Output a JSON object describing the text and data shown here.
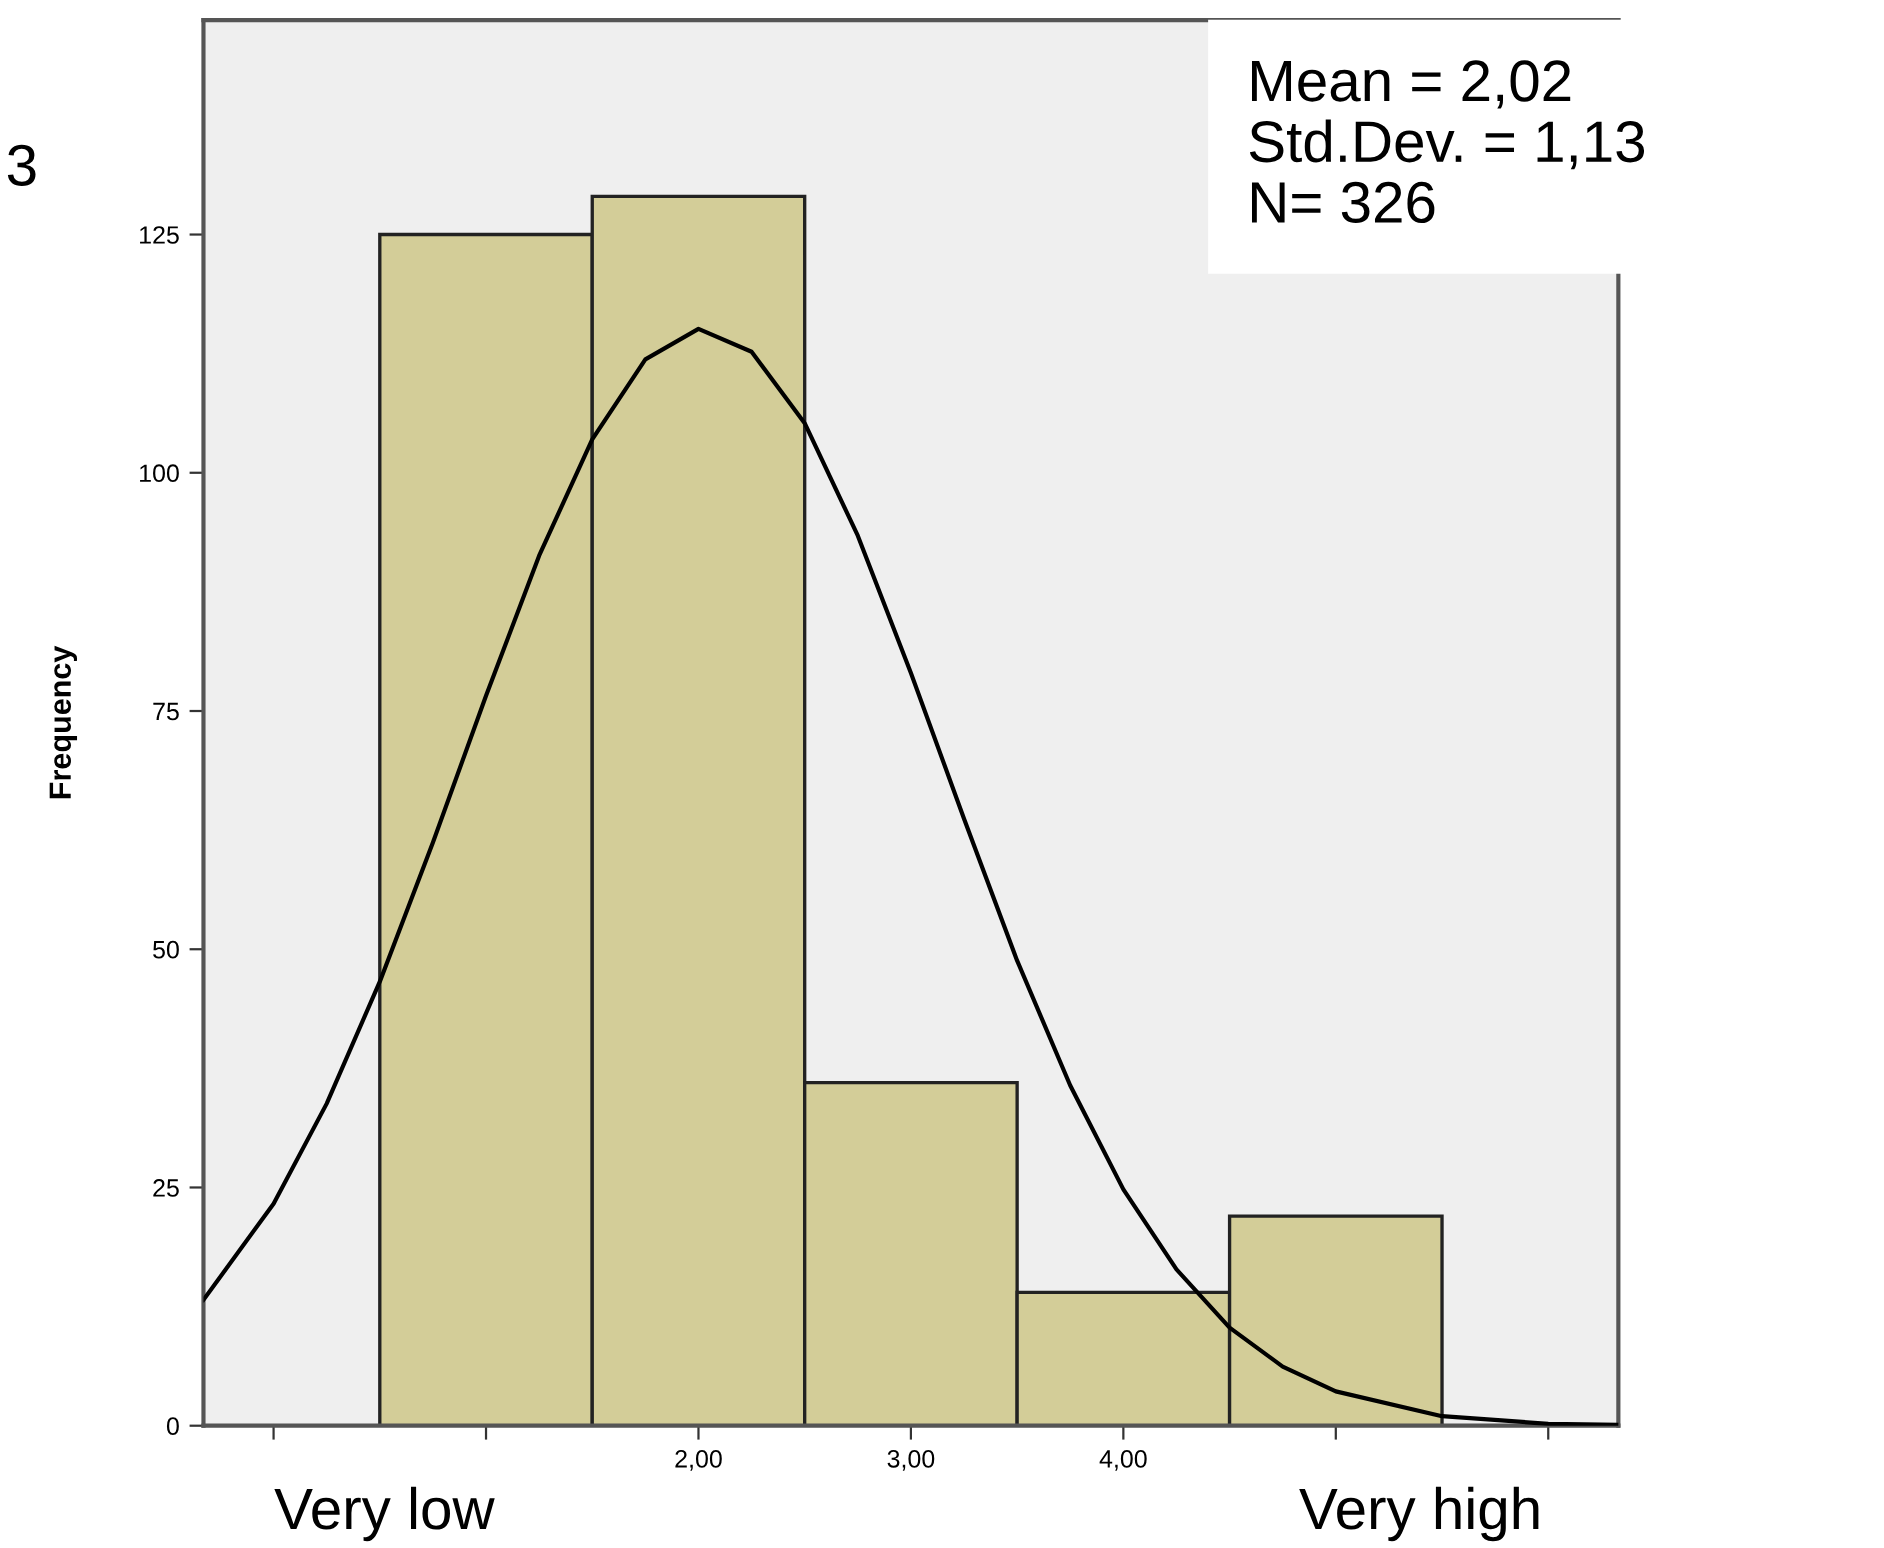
{
  "chart_data": {
    "type": "histogram",
    "ylabel": "Frequency",
    "bins": [
      0.5,
      1.5,
      2.5,
      3.5,
      4.5,
      5.5
    ],
    "values": [
      125,
      129,
      36,
      14,
      22
    ],
    "color": "#d3cd98",
    "series": [
      {
        "type": "line",
        "color": "#000000",
        "x": [
          -0.33,
          0,
          0.25,
          0.5,
          0.75,
          1,
          1.25,
          1.5,
          1.75,
          2,
          2.25,
          2.5,
          2.75,
          3,
          3.25,
          3.5,
          3.75,
          4,
          4.25,
          4.5,
          4.75,
          5,
          5.5,
          6,
          6.33
        ],
        "values": [
          13.2,
          23.3,
          33.8,
          46.6,
          61.2,
          76.6,
          91.3,
          103.5,
          111.9,
          115.1,
          112.7,
          105.2,
          93.4,
          79.0,
          63.7,
          48.8,
          35.7,
          24.8,
          16.4,
          10.3,
          6.2,
          3.6,
          1.0,
          0.2,
          0.1
        ]
      }
    ],
    "xlim": [
      -0.33,
      6.33
    ],
    "xticks": [
      {
        "value": 0,
        "label": null
      },
      {
        "value": 1,
        "label": null
      },
      {
        "value": 2,
        "label": "2,00"
      },
      {
        "value": 3,
        "label": "3,00"
      },
      {
        "value": 4,
        "label": "4,00"
      },
      {
        "value": 5,
        "label": null
      },
      {
        "value": 6,
        "label": null
      }
    ],
    "ylim": [
      0,
      147.5
    ],
    "yticks": [
      0,
      25,
      50,
      75,
      100,
      125
    ],
    "grid": false,
    "legend": false,
    "annotations": [
      "3",
      "Mean = 2,02\nStd.Dev. = 1,13\nN= 326",
      "Very low",
      "Very high"
    ]
  }
}
